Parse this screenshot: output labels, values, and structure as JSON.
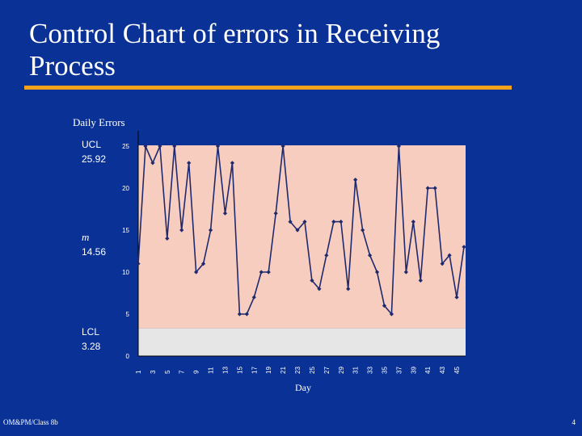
{
  "slide": {
    "title": "Control Chart of errors in Receiving Process",
    "footer_left": "OM&PM/Class 8b",
    "page_number": "4"
  },
  "chart_data": {
    "type": "line",
    "title": "Daily Errors",
    "xlabel": "Day",
    "ylabel": "",
    "ylim": [
      0,
      25
    ],
    "x": [
      1,
      2,
      3,
      4,
      5,
      6,
      7,
      8,
      9,
      10,
      11,
      12,
      13,
      14,
      15,
      16,
      17,
      18,
      19,
      20,
      21,
      22,
      23,
      24,
      25,
      26,
      27,
      28,
      29,
      30,
      31,
      32,
      33,
      34,
      35,
      36,
      37,
      38,
      39,
      40,
      41,
      42,
      43,
      44,
      45,
      46
    ],
    "xtick_labels": [
      "1",
      "3",
      "5",
      "7",
      "9",
      "11",
      "13",
      "15",
      "17",
      "19",
      "21",
      "23",
      "25",
      "27",
      "29",
      "31",
      "33",
      "35",
      "37",
      "39",
      "41",
      "43",
      "45"
    ],
    "yticks": [
      0,
      5,
      10,
      15,
      20,
      25
    ],
    "series": [
      {
        "values": [
          11,
          25,
          23,
          25,
          14,
          25,
          15,
          23,
          10,
          11,
          15,
          25,
          17,
          23,
          5,
          5,
          7,
          10,
          10,
          17,
          25,
          16,
          15,
          16,
          9,
          8,
          12,
          16,
          16,
          8,
          21,
          15,
          12,
          10,
          6,
          5,
          25,
          10,
          16,
          9,
          20,
          20,
          11,
          12,
          7,
          13
        ],
        "color": "#1f2a6e"
      }
    ],
    "control_limits": {
      "ucl": {
        "label": "UCL",
        "value_text": "25.92",
        "value": 25.92
      },
      "mean": {
        "label": "m",
        "value_text": "14.56",
        "value": 14.56
      },
      "lcl": {
        "label": "LCL",
        "value_text": "3.28",
        "value": 3.28
      }
    },
    "colors": {
      "plot_band": "#f7cdbf",
      "below_lcl_band": "#e6e6e6",
      "line": "#1f2a6e",
      "text": "#ffffff"
    },
    "grid": false
  }
}
